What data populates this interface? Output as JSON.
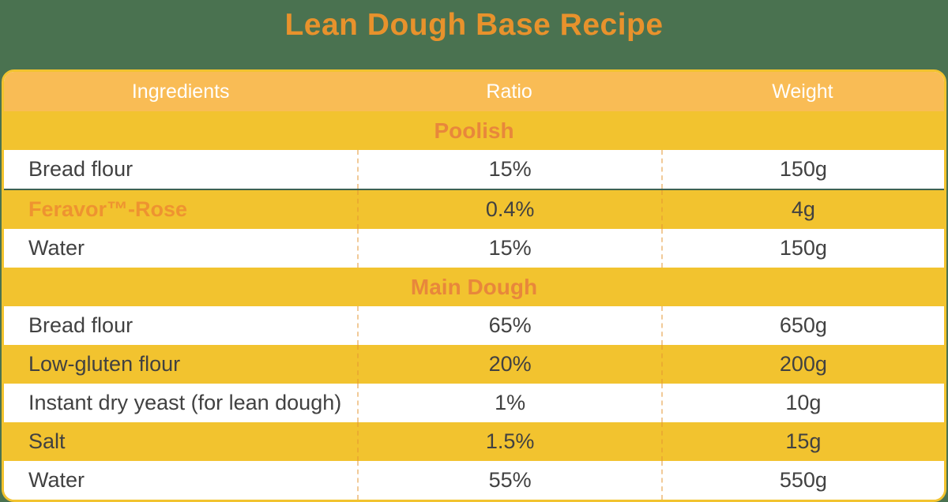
{
  "page": {
    "title": "Lean Dough Base Recipe"
  },
  "colors": {
    "background_green": "#4A7250",
    "table_yellow": "#F2C32F",
    "header_amber": "#F9BC55",
    "title_orange": "#E8922C",
    "section_orange": "#E8873B",
    "brand_orange": "#EE9330",
    "text_dark": "#414141",
    "divider_teal": "#3D6152",
    "row_white": "#FFFFFF"
  },
  "table": {
    "columns": [
      "Ingredients",
      "Ratio",
      "Weight"
    ],
    "sections": [
      {
        "name": "Poolish",
        "rows": [
          {
            "ingredient": "Bread flour",
            "ratio": "15%",
            "weight": "150g"
          },
          {
            "ingredient": "Feravor™-Rose",
            "ratio": "0.4%",
            "weight": "4g",
            "highlight": true
          },
          {
            "ingredient": "Water",
            "ratio": "15%",
            "weight": "150g"
          }
        ]
      },
      {
        "name": "Main Dough",
        "rows": [
          {
            "ingredient": "Bread flour",
            "ratio": "65%",
            "weight": "650g"
          },
          {
            "ingredient": "Low-gluten flour",
            "ratio": "20%",
            "weight": "200g"
          },
          {
            "ingredient": "Instant dry yeast (for lean dough)",
            "ratio": "1%",
            "weight": "10g"
          },
          {
            "ingredient": "Salt",
            "ratio": "1.5%",
            "weight": "15g"
          },
          {
            "ingredient": "Water",
            "ratio": "55%",
            "weight": "550g"
          }
        ]
      }
    ]
  },
  "chart_data": {
    "type": "table",
    "title": "Lean Dough Base Recipe",
    "columns": [
      "Ingredients",
      "Ratio",
      "Weight"
    ],
    "sections": [
      {
        "name": "Poolish",
        "rows": [
          [
            "Bread flour",
            "15%",
            "150g"
          ],
          [
            "Feravor™-Rose",
            "0.4%",
            "4g"
          ],
          [
            "Water",
            "15%",
            "150g"
          ]
        ]
      },
      {
        "name": "Main Dough",
        "rows": [
          [
            "Bread flour",
            "65%",
            "650g"
          ],
          [
            "Low-gluten flour",
            "20%",
            "200g"
          ],
          [
            "Instant dry yeast (for lean dough)",
            "1%",
            "10g"
          ],
          [
            "Salt",
            "1.5%",
            "15g"
          ],
          [
            "Water",
            "55%",
            "550g"
          ]
        ]
      }
    ]
  }
}
